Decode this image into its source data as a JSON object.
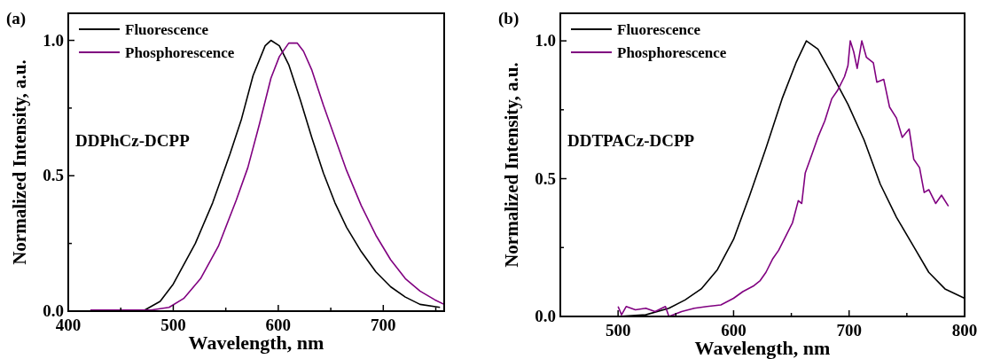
{
  "chart_data": [
    {
      "type": "line",
      "title": "(a)",
      "xlabel": "Wavelength, nm",
      "ylabel": "Normalized Intensity, a.u.",
      "annotations": [
        "DDPhCz-DCPP"
      ],
      "xlim": [
        400,
        758
      ],
      "ylim": [
        0,
        1.1
      ],
      "xticks": [
        400,
        {
          "value": 450,
          "label": null
        },
        500,
        {
          "value": 550,
          "label": null
        },
        600,
        {
          "value": 650,
          "label": null
        },
        700,
        {
          "value": 750,
          "label": null
        }
      ],
      "yticks": [
        {
          "value": 0,
          "label": "0.0"
        },
        {
          "value": 0.25,
          "label": null
        },
        {
          "value": 0.5,
          "label": "0.5"
        },
        {
          "value": 0.75,
          "label": null
        },
        {
          "value": 1,
          "label": "1.0"
        }
      ],
      "legend": "top left",
      "grid": false,
      "line_style": "solid",
      "marker": "none",
      "series": [
        {
          "name": "Fluorescence",
          "color": "#000000",
          "x": [
            471,
            487.5,
            500,
            521,
            537.5,
            554,
            565,
            576,
            587.5,
            593,
            601,
            610,
            621,
            632,
            643,
            654,
            665,
            679,
            693,
            707,
            721,
            735,
            754
          ],
          "values": [
            0,
            0.036,
            0.1,
            0.25,
            0.4,
            0.58,
            0.71,
            0.87,
            0.98,
            1,
            0.98,
            0.91,
            0.78,
            0.64,
            0.51,
            0.4,
            0.31,
            0.22,
            0.145,
            0.09,
            0.052,
            0.025,
            0.014
          ]
        },
        {
          "name": "Phosphorescence",
          "color": "#800080",
          "x": [
            421,
            479,
            496,
            510,
            526,
            543,
            560,
            571,
            582,
            593,
            601,
            610,
            618,
            624,
            632,
            643,
            654,
            665,
            679,
            693,
            707,
            721,
            735,
            749,
            758
          ],
          "values": [
            0.004,
            0.004,
            0.014,
            0.047,
            0.12,
            0.24,
            0.41,
            0.53,
            0.69,
            0.86,
            0.94,
            0.99,
            0.99,
            0.96,
            0.89,
            0.76,
            0.64,
            0.52,
            0.39,
            0.28,
            0.19,
            0.12,
            0.074,
            0.042,
            0.025
          ]
        }
      ]
    },
    {
      "type": "line",
      "title": "(b)",
      "xlabel": "Wavelength, nm",
      "ylabel": "Normalized Intensity, a.u.",
      "annotations": [
        "DDTPACz-DCPP"
      ],
      "xlim": [
        450,
        800
      ],
      "ylim": [
        0,
        1.1
      ],
      "xticks": [
        500,
        {
          "value": 550,
          "label": null
        },
        600,
        {
          "value": 650,
          "label": null
        },
        700,
        {
          "value": 750,
          "label": null
        },
        800
      ],
      "yticks": [
        {
          "value": 0,
          "label": "0.0"
        },
        {
          "value": 0.25,
          "label": null
        },
        {
          "value": 0.5,
          "label": "0.5"
        },
        {
          "value": 0.75,
          "label": null
        },
        {
          "value": 1,
          "label": "1.0"
        }
      ],
      "legend": "top left",
      "grid": false,
      "line_style": "solid",
      "marker": "none",
      "series": [
        {
          "name": "Fluorescence",
          "color": "#000000",
          "x": [
            500,
            524,
            544,
            558,
            572,
            586,
            600,
            614,
            628,
            642,
            654,
            663,
            673,
            685,
            699,
            713,
            727,
            741,
            755,
            769,
            783,
            800
          ],
          "values": [
            0,
            0.006,
            0.03,
            0.06,
            0.1,
            0.17,
            0.28,
            0.44,
            0.61,
            0.79,
            0.92,
            1,
            0.97,
            0.88,
            0.77,
            0.64,
            0.48,
            0.36,
            0.26,
            0.16,
            0.1,
            0.066
          ]
        },
        {
          "name": "Phosphorescence",
          "color": "#800080",
          "x": [
            500,
            503,
            507,
            515,
            524,
            532,
            541,
            544,
            555,
            566,
            577,
            589,
            600,
            608,
            617,
            623,
            628,
            634,
            639,
            645,
            651,
            656,
            659,
            662,
            668,
            673,
            679,
            685,
            690,
            696,
            699,
            701,
            704,
            707,
            711,
            715,
            721,
            724,
            730,
            735,
            741,
            746,
            752,
            756,
            761,
            765,
            769,
            775,
            780,
            786
          ],
          "values": [
            0.036,
            0.006,
            0.036,
            0.024,
            0.03,
            0.018,
            0.036,
            0,
            0.018,
            0.03,
            0.036,
            0.042,
            0.066,
            0.09,
            0.11,
            0.13,
            0.16,
            0.21,
            0.24,
            0.29,
            0.34,
            0.42,
            0.41,
            0.52,
            0.59,
            0.65,
            0.71,
            0.79,
            0.82,
            0.87,
            0.91,
            1,
            0.96,
            0.9,
            1,
            0.94,
            0.92,
            0.85,
            0.86,
            0.76,
            0.72,
            0.65,
            0.68,
            0.57,
            0.54,
            0.45,
            0.46,
            0.41,
            0.44,
            0.4
          ]
        }
      ]
    }
  ]
}
